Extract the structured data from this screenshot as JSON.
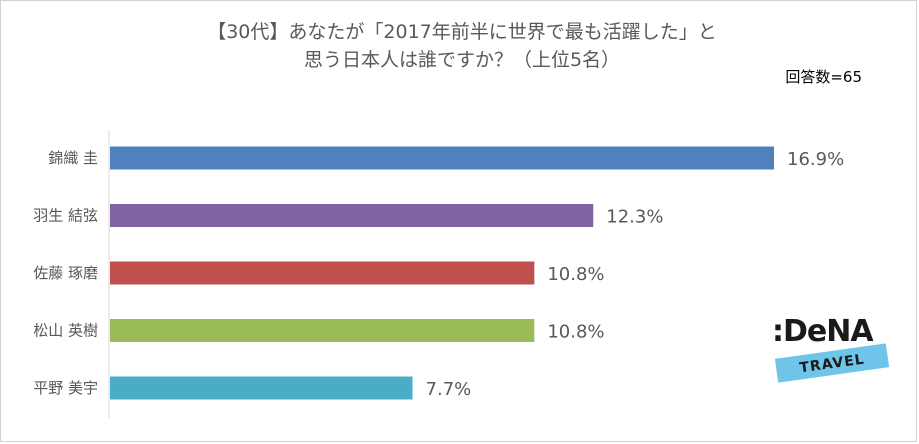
{
  "chart_data": {
    "type": "bar",
    "orientation": "horizontal",
    "title_lines": [
      "【30代】あなたが「2017年前半に世界で最も活躍した」と",
      "思う日本人は誰ですか？（上位5名）"
    ],
    "respondents": "回答数=65",
    "categories": [
      "錦織 圭",
      "羽生 結弦",
      "佐藤 琢磨",
      "松山 英樹",
      "平野 美宇"
    ],
    "values": [
      16.9,
      12.3,
      10.8,
      10.8,
      7.7
    ],
    "value_labels": [
      "16.9%",
      "12.3%",
      "10.8%",
      "10.8%",
      "7.7%"
    ],
    "colors": [
      "#4F81BD",
      "#8064A2",
      "#C0504D",
      "#9BBB59",
      "#4BACC6"
    ],
    "xlim": [
      0,
      17
    ],
    "xlabel": "",
    "ylabel": "",
    "grid": false,
    "legend": "none"
  },
  "logo": {
    "brand": "DeNA",
    "sub": "TRAVEL",
    "colors": {
      "ink": "#1a1a1a",
      "band": "#6EC5E9"
    }
  }
}
